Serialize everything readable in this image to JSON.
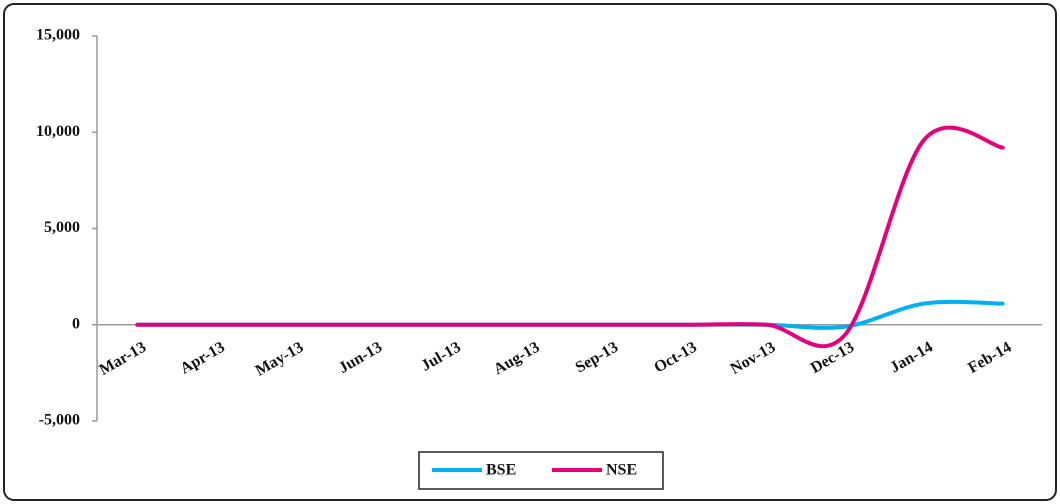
{
  "chart_data": {
    "type": "line",
    "categories": [
      "Mar-13",
      "Apr-13",
      "May-13",
      "Jun-13",
      "Jul-13",
      "Aug-13",
      "Sep-13",
      "Oct-13",
      "Nov-13",
      "Dec-13",
      "Jan-14",
      "Feb-14"
    ],
    "series": [
      {
        "name": "BSE",
        "color": "#00b0f0",
        "values": [
          0,
          0,
          0,
          0,
          0,
          0,
          0,
          0,
          0,
          -100,
          1100,
          1100
        ]
      },
      {
        "name": "NSE",
        "color": "#e6007e",
        "values": [
          0,
          0,
          0,
          0,
          0,
          0,
          0,
          0,
          0,
          -500,
          9600,
          9200
        ]
      }
    ],
    "ylim": [
      -5000,
      15000
    ],
    "yticks": [
      {
        "value": -5000,
        "label": "-5,000"
      },
      0,
      {
        "value": 5000,
        "label": "5,000"
      },
      {
        "value": 10000,
        "label": "10,000"
      },
      {
        "value": 15000,
        "label": "15,000"
      }
    ],
    "grid": false,
    "smooth": true,
    "legend": "bottom"
  }
}
